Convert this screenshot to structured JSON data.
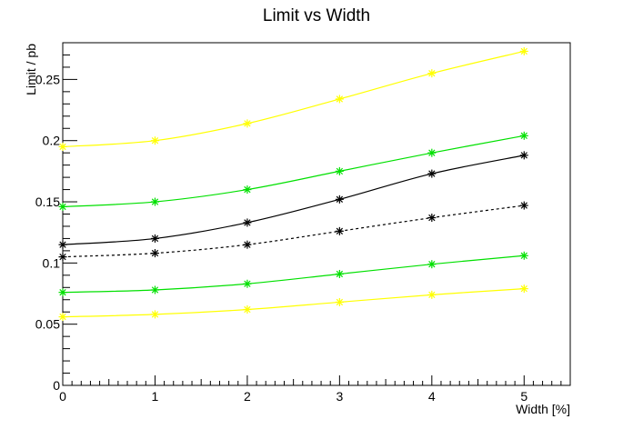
{
  "chart_data": {
    "type": "line",
    "title": "Limit vs Width",
    "xlabel": "Width [%]",
    "ylabel": "Limit / pb",
    "x": [
      0,
      1,
      2,
      3,
      4,
      5
    ],
    "xlim": [
      0,
      5.5
    ],
    "ylim": [
      0,
      0.28
    ],
    "x_ticks": [
      "0",
      "1",
      "2",
      "3",
      "4",
      "5"
    ],
    "y_ticks": [
      "0",
      "0.05",
      "0.1",
      "0.15",
      "0.2",
      "0.25"
    ],
    "grid": false,
    "legend": "none",
    "series": [
      {
        "color": "#ffff00",
        "dashed": false,
        "values": [
          0.195,
          0.2,
          0.214,
          0.234,
          0.255,
          0.273
        ]
      },
      {
        "color": "#00e000",
        "dashed": false,
        "values": [
          0.146,
          0.15,
          0.16,
          0.175,
          0.19,
          0.204
        ]
      },
      {
        "color": "#000000",
        "dashed": false,
        "values": [
          0.115,
          0.12,
          0.133,
          0.152,
          0.173,
          0.188
        ]
      },
      {
        "color": "#000000",
        "dashed": true,
        "values": [
          0.105,
          0.108,
          0.115,
          0.126,
          0.137,
          0.147
        ]
      },
      {
        "color": "#00e000",
        "dashed": false,
        "values": [
          0.076,
          0.078,
          0.083,
          0.091,
          0.099,
          0.106
        ]
      },
      {
        "color": "#ffff00",
        "dashed": false,
        "values": [
          0.056,
          0.058,
          0.062,
          0.068,
          0.074,
          0.079
        ]
      }
    ]
  }
}
